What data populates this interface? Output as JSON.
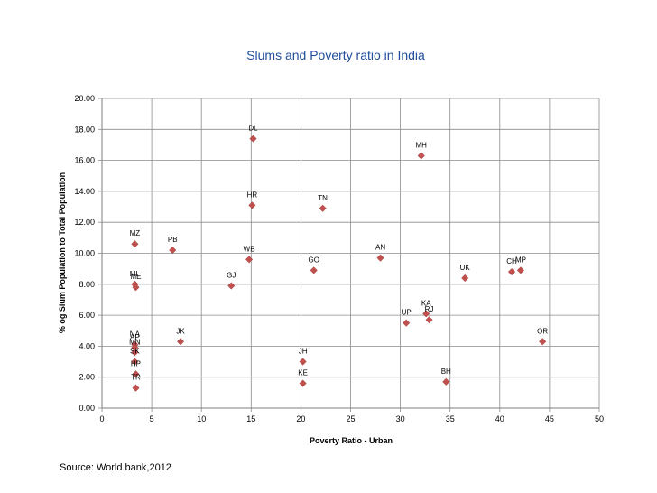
{
  "chart_data": {
    "type": "scatter",
    "title": "Slums and Poverty ratio in India",
    "xlabel": "Poverty Ratio - Urban",
    "ylabel": "% og Slum Population to Total Population",
    "xlim": [
      0,
      50
    ],
    "ylim": [
      0,
      20
    ],
    "xticks": [
      "0",
      "5",
      "10",
      "15",
      "20",
      "25",
      "30",
      "35",
      "40",
      "45",
      "50"
    ],
    "yticks": [
      "0.00",
      "2.00",
      "4.00",
      "6.00",
      "8.00",
      "10.00",
      "12.00",
      "14.00",
      "16.00",
      "18.00",
      "20.00"
    ],
    "grid": true,
    "marker_color": "#c0504d",
    "points": [
      {
        "label": "DL",
        "x": 15.2,
        "y": 17.4
      },
      {
        "label": "MH",
        "x": 32.1,
        "y": 16.3
      },
      {
        "label": "HR",
        "x": 15.1,
        "y": 13.1
      },
      {
        "label": "TN",
        "x": 22.2,
        "y": 12.9
      },
      {
        "label": "MZ",
        "x": 3.3,
        "y": 10.6
      },
      {
        "label": "PB",
        "x": 7.1,
        "y": 10.2
      },
      {
        "label": "WB",
        "x": 14.8,
        "y": 9.6
      },
      {
        "label": "AN",
        "x": 28.0,
        "y": 9.7
      },
      {
        "label": "GO",
        "x": 21.3,
        "y": 8.9
      },
      {
        "label": "CH",
        "x": 41.2,
        "y": 8.8
      },
      {
        "label": "MP",
        "x": 42.1,
        "y": 8.9
      },
      {
        "label": "UK",
        "x": 36.5,
        "y": 8.4
      },
      {
        "label": "GJ",
        "x": 13.0,
        "y": 7.9
      },
      {
        "label": "ML",
        "x": 3.3,
        "y": 8.0
      },
      {
        "label": "ME",
        "x": 3.4,
        "y": 7.8
      },
      {
        "label": "KA",
        "x": 32.6,
        "y": 6.1
      },
      {
        "label": "RJ",
        "x": 32.9,
        "y": 5.7
      },
      {
        "label": "UP",
        "x": 30.6,
        "y": 5.5
      },
      {
        "label": "OR",
        "x": 44.3,
        "y": 4.3
      },
      {
        "label": "JK",
        "x": 7.9,
        "y": 4.3
      },
      {
        "label": "NA",
        "x": 3.3,
        "y": 4.1
      },
      {
        "label": "AP",
        "x": 3.3,
        "y": 3.9
      },
      {
        "label": "MN",
        "x": 3.3,
        "y": 3.6
      },
      {
        "label": "JH",
        "x": 20.2,
        "y": 3.0
      },
      {
        "label": "SK",
        "x": 3.3,
        "y": 3.0
      },
      {
        "label": "BH",
        "x": 34.6,
        "y": 1.7
      },
      {
        "label": "KE",
        "x": 20.2,
        "y": 1.6
      },
      {
        "label": "HP",
        "x": 3.4,
        "y": 2.2
      },
      {
        "label": "TR",
        "x": 3.4,
        "y": 1.3
      }
    ]
  },
  "footer": {
    "source": "Source: World bank,2012"
  }
}
